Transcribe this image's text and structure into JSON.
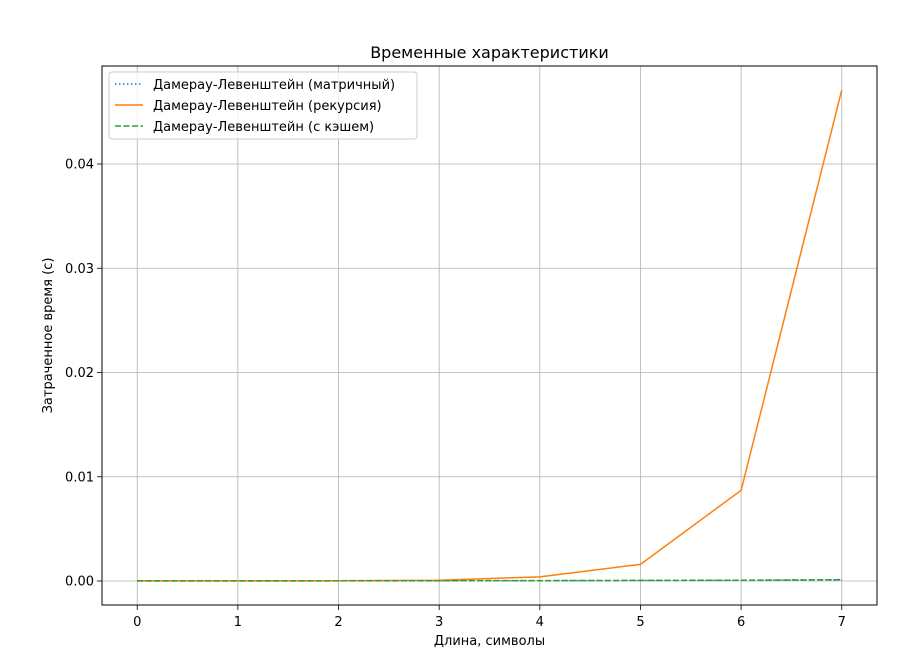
{
  "chart_data": {
    "type": "line",
    "title": "Временные характеристики",
    "xlabel": "Длина, символы",
    "ylabel": "Затраченное время (с)",
    "x": [
      0,
      1,
      2,
      3,
      4,
      5,
      6,
      7
    ],
    "xlim": [
      -0.35,
      7.35
    ],
    "ylim": [
      -0.0023,
      0.0494
    ],
    "xticks": [
      0,
      1,
      2,
      3,
      4,
      5,
      6,
      7
    ],
    "yticks": [
      0,
      0.01,
      0.02,
      0.03,
      0.04
    ],
    "ytick_labels": [
      "0.00",
      "0.01",
      "0.02",
      "0.03",
      "0.04"
    ],
    "grid": true,
    "legend_position": "top-left",
    "series": [
      {
        "name": "Дамерау-Левенштейн (матричный)",
        "values": [
          1e-05,
          1e-05,
          1e-05,
          2e-05,
          3e-05,
          5e-05,
          7e-05,
          0.0001
        ],
        "color": "#1f77b4",
        "style": "dotted"
      },
      {
        "name": "Дамерау-Левенштейн (рекурсия)",
        "values": [
          1e-05,
          1e-05,
          2e-05,
          8e-05,
          0.0004,
          0.0016,
          0.0087,
          0.0471
        ],
        "color": "#ff7f0e",
        "style": "solid"
      },
      {
        "name": "Дамерау-Левенштейн (с кэшем)",
        "values": [
          1e-05,
          1e-05,
          2e-05,
          3e-05,
          4e-05,
          6e-05,
          8e-05,
          0.00013
        ],
        "color": "#2ca02c",
        "style": "dashed"
      }
    ]
  }
}
